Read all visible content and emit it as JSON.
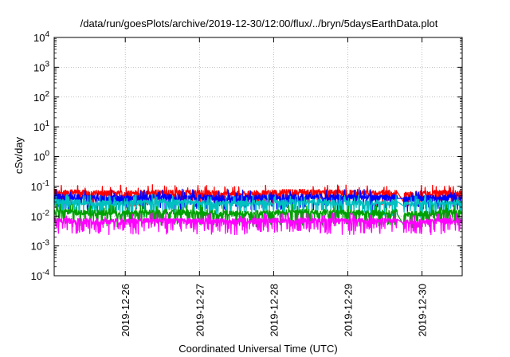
{
  "chart_data": {
    "type": "line",
    "title": "/data/run/goesPlots/archive/2019-12-30/12:00/flux/../bryn/5daysEarthData.plot",
    "xlabel": "Coordinated Universal Time (UTC)",
    "ylabel": "cSv/day",
    "yscale": "log",
    "ylim": [
      0.0001,
      10000
    ],
    "xlim": [
      "2019-12-25 01:00",
      "2019-12-30 13:00"
    ],
    "grid": true,
    "x_ticks": [
      {
        "date": "2019-12-26",
        "label": "2019-12-26"
      },
      {
        "date": "2019-12-27",
        "label": "2019-12-27"
      },
      {
        "date": "2019-12-28",
        "label": "2019-12-28"
      },
      {
        "date": "2019-12-29",
        "label": "2019-12-29"
      },
      {
        "date": "2019-12-30",
        "label": "2019-12-30"
      }
    ],
    "y_ticks": [
      {
        "value": 0.0001,
        "base": "10",
        "exp": "-4"
      },
      {
        "value": 0.001,
        "base": "10",
        "exp": "-3"
      },
      {
        "value": 0.01,
        "base": "10",
        "exp": "-2"
      },
      {
        "value": 0.1,
        "base": "10",
        "exp": "-1"
      },
      {
        "value": 1,
        "base": "10",
        "exp": "0"
      },
      {
        "value": 10,
        "base": "10",
        "exp": "1"
      },
      {
        "value": 100,
        "base": "10",
        "exp": "2"
      },
      {
        "value": 1000,
        "base": "10",
        "exp": "3"
      },
      {
        "value": 10000,
        "base": "10",
        "exp": "4"
      }
    ],
    "series": [
      {
        "color": "#ff0000",
        "x": [
          "2019-12-25 01:00",
          "2019-12-25 12:00",
          "2019-12-26 00:00",
          "2019-12-26 12:00",
          "2019-12-27 00:00",
          "2019-12-27 12:00",
          "2019-12-28 00:00",
          "2019-12-28 12:00",
          "2019-12-29 00:00",
          "2019-12-29 12:00",
          "2019-12-29 16:00",
          "2019-12-29 18:00",
          "2019-12-30 00:00",
          "2019-12-30 06:00",
          "2019-12-30 13:00"
        ],
        "values": [
          0.065,
          0.06,
          0.058,
          0.062,
          0.06,
          0.055,
          0.062,
          0.065,
          0.06,
          0.06,
          0.062,
          0.05,
          0.058,
          0.06,
          0.06
        ]
      },
      {
        "color": "#0000ff",
        "x": [
          "2019-12-25 01:00",
          "2019-12-25 12:00",
          "2019-12-26 00:00",
          "2019-12-26 12:00",
          "2019-12-27 00:00",
          "2019-12-27 12:00",
          "2019-12-28 00:00",
          "2019-12-28 12:00",
          "2019-12-29 00:00",
          "2019-12-29 12:00",
          "2019-12-29 16:00",
          "2019-12-29 18:00",
          "2019-12-30 00:00",
          "2019-12-30 06:00",
          "2019-12-30 13:00"
        ],
        "values": [
          0.045,
          0.042,
          0.04,
          0.044,
          0.042,
          0.04,
          0.043,
          0.045,
          0.042,
          0.042,
          0.044,
          0.038,
          0.04,
          0.042,
          0.042
        ]
      },
      {
        "color": "#00c0c0",
        "x": [
          "2019-12-25 01:00",
          "2019-12-25 12:00",
          "2019-12-26 00:00",
          "2019-12-26 12:00",
          "2019-12-27 00:00",
          "2019-12-27 12:00",
          "2019-12-28 00:00",
          "2019-12-28 12:00",
          "2019-12-29 00:00",
          "2019-12-29 12:00",
          "2019-12-29 16:00",
          "2019-12-29 18:00",
          "2019-12-30 00:00",
          "2019-12-30 06:00",
          "2019-12-30 13:00"
        ],
        "values": [
          0.03,
          0.028,
          0.027,
          0.03,
          0.028,
          0.026,
          0.029,
          0.03,
          0.028,
          0.028,
          0.03,
          0.024,
          0.026,
          0.028,
          0.028
        ]
      },
      {
        "color": "#00a000",
        "x": [
          "2019-12-25 01:00",
          "2019-12-25 12:00",
          "2019-12-26 00:00",
          "2019-12-26 12:00",
          "2019-12-27 00:00",
          "2019-12-27 12:00",
          "2019-12-28 00:00",
          "2019-12-28 12:00",
          "2019-12-29 00:00",
          "2019-12-29 12:00",
          "2019-12-29 16:00",
          "2019-12-29 18:00",
          "2019-12-30 00:00",
          "2019-12-30 06:00",
          "2019-12-30 13:00"
        ],
        "values": [
          0.014,
          0.013,
          0.012,
          0.014,
          0.013,
          0.012,
          0.013,
          0.014,
          0.013,
          0.013,
          0.014,
          0.011,
          0.012,
          0.013,
          0.013
        ]
      },
      {
        "color": "#ff00ff",
        "x": [
          "2019-12-25 01:00",
          "2019-12-25 12:00",
          "2019-12-26 00:00",
          "2019-12-26 12:00",
          "2019-12-27 00:00",
          "2019-12-27 12:00",
          "2019-12-28 00:00",
          "2019-12-28 12:00",
          "2019-12-29 00:00",
          "2019-12-29 12:00",
          "2019-12-29 16:00",
          "2019-12-29 18:00",
          "2019-12-30 00:00",
          "2019-12-30 06:00",
          "2019-12-30 13:00"
        ],
        "values": [
          0.007,
          0.0068,
          0.0065,
          0.007,
          0.0068,
          0.0066,
          0.007,
          0.0072,
          0.0068,
          0.0068,
          0.007,
          0.0062,
          0.0065,
          0.0068,
          0.0068
        ]
      }
    ]
  }
}
